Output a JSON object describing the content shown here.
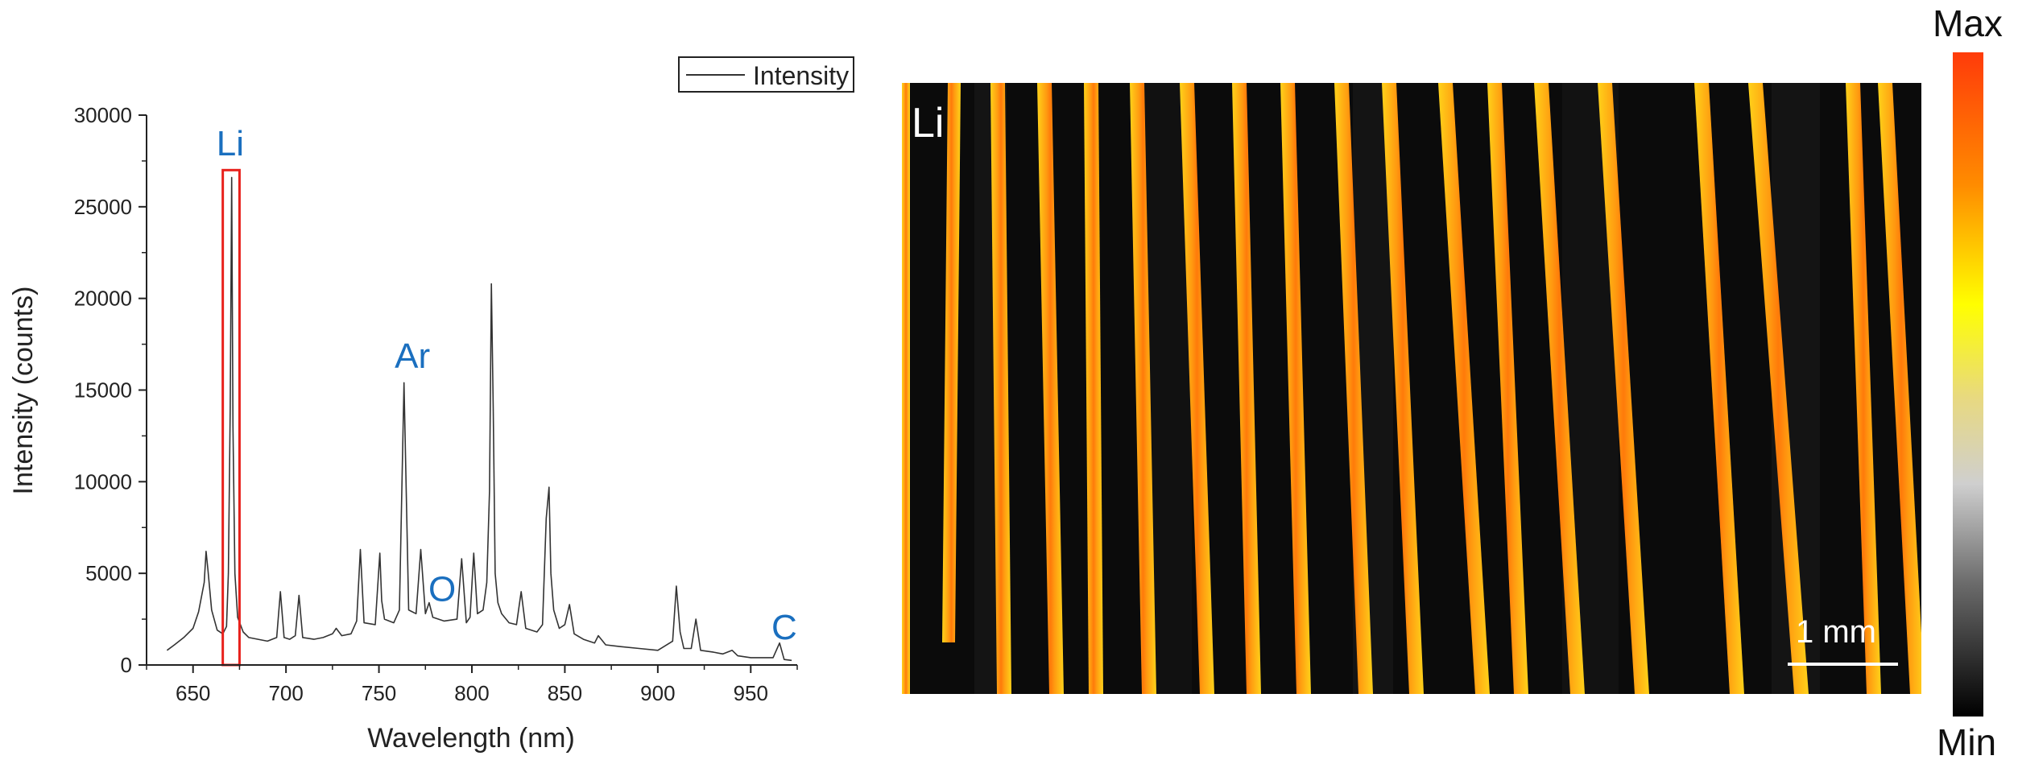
{
  "chart_data": {
    "type": "line",
    "xlabel": "Wavelength (nm)",
    "ylabel": "Intensity (counts)",
    "xlim": [
      625,
      975
    ],
    "ylim": [
      0,
      30000
    ],
    "xticks": [
      650,
      700,
      750,
      800,
      850,
      900,
      950
    ],
    "yticks": [
      0,
      5000,
      10000,
      15000,
      20000,
      25000,
      30000
    ],
    "legend": "top-right",
    "series": [
      {
        "name": "Intensity",
        "color": "#333333",
        "x": [
          636,
          640,
          645,
          650,
          653,
          656,
          657,
          658,
          660,
          663,
          666,
          668,
          669,
          670,
          670.8,
          671.5,
          672.5,
          674,
          677,
          680,
          685,
          690,
          695,
          697,
          699,
          702,
          705,
          707,
          709,
          715,
          720,
          725,
          727,
          730,
          735,
          738,
          740,
          742,
          748,
          750.5,
          751.5,
          753,
          758,
          761,
          763.5,
          766,
          770,
          772.5,
          775,
          777,
          779,
          785,
          792,
          794.5,
          797,
          799,
          801,
          803,
          806,
          808,
          809.5,
          810.5,
          811.5,
          812.5,
          814,
          816,
          820,
          824,
          826.5,
          829,
          835,
          838,
          840,
          841.5,
          842.5,
          844,
          847,
          850,
          852.5,
          855,
          860,
          866,
          868,
          872,
          880,
          890,
          900,
          908,
          910,
          912,
          914,
          918,
          920.5,
          923,
          930,
          935,
          940,
          943,
          950,
          958,
          962,
          965.5,
          968,
          972
        ],
        "values": [
          800,
          1100,
          1500,
          2000,
          2900,
          4500,
          6200,
          5200,
          3000,
          1900,
          1700,
          2100,
          5000,
          14000,
          26600,
          13000,
          5000,
          2600,
          1800,
          1500,
          1400,
          1300,
          1500,
          4000,
          1500,
          1400,
          1600,
          3800,
          1500,
          1400,
          1500,
          1700,
          2000,
          1600,
          1700,
          2400,
          6300,
          2300,
          2200,
          6100,
          3500,
          2500,
          2300,
          3000,
          15400,
          3000,
          2800,
          6300,
          2800,
          3400,
          2600,
          2400,
          2500,
          5800,
          2300,
          2600,
          6100,
          2800,
          3000,
          4500,
          9500,
          20800,
          14000,
          5000,
          3400,
          2800,
          2300,
          2200,
          4000,
          2000,
          1800,
          2200,
          8000,
          9700,
          5000,
          3000,
          2000,
          2200,
          3300,
          1700,
          1400,
          1200,
          1600,
          1100,
          1000,
          900,
          800,
          1300,
          4300,
          1800,
          900,
          900,
          2500,
          800,
          700,
          600,
          800,
          500,
          400,
          400,
          400,
          1200,
          300,
          250
        ]
      }
    ],
    "annotations": [
      {
        "text": "Li",
        "x": 670,
        "y": 27800,
        "color": "#1a6fbf"
      },
      {
        "text": "Ar",
        "x": 768,
        "y": 16200,
        "color": "#1a6fbf"
      },
      {
        "text": "O",
        "x": 784,
        "y": 3500,
        "color": "#1a6fbf"
      },
      {
        "text": "C",
        "x": 968,
        "y": 1400,
        "color": "#1a6fbf"
      }
    ],
    "highlight_box": {
      "x": [
        666,
        675
      ],
      "y": [
        0,
        27000
      ],
      "color": "#e8211c"
    }
  },
  "map": {
    "element_label": "Li",
    "scale_label": "1 mm"
  },
  "colorbar": {
    "max_label": "Max",
    "min_label": "Min"
  }
}
